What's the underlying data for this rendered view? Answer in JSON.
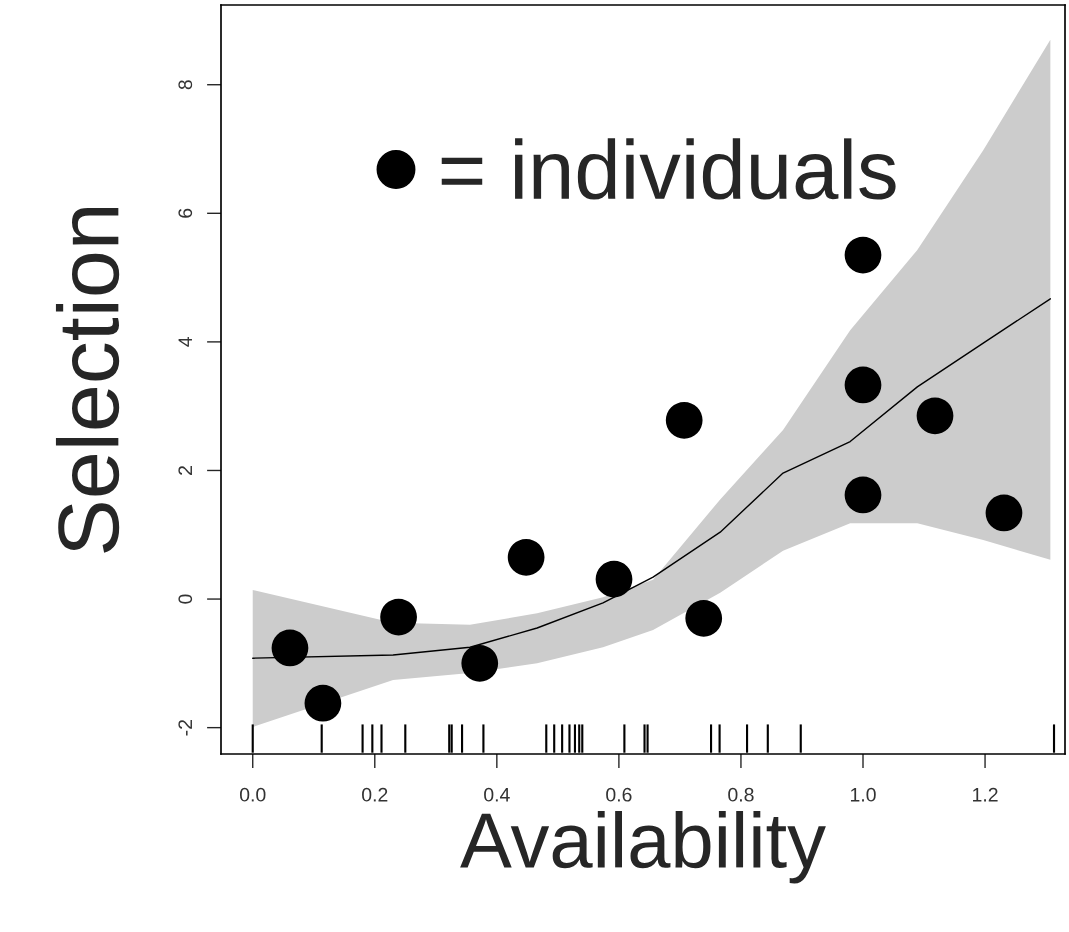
{
  "chart_data": {
    "type": "scatter",
    "xlabel": "Availability",
    "ylabel": "Selection",
    "xlim": [
      -0.052,
      1.331
    ],
    "ylim": [
      -2.41,
      9.24
    ],
    "xticks": [
      {
        "value": 0,
        "label": "0.0"
      },
      0.2,
      0.4,
      0.6,
      0.8,
      {
        "value": 1,
        "label": "1.0"
      },
      1.2
    ],
    "yticks": [
      -2,
      0,
      2,
      4,
      6,
      8
    ],
    "grid": false,
    "legend": "top left",
    "marker": "circle",
    "series": [
      {
        "name": "= individuals",
        "color": "#000000",
        "x": [
          0.061,
          0.115,
          0.239,
          0.372,
          0.448,
          0.592,
          0.707,
          0.739,
          1.0,
          1.0,
          1.0,
          1.118,
          1.231
        ],
        "values": [
          -0.76,
          -1.62,
          -0.28,
          -1.0,
          0.65,
          0.31,
          2.78,
          -0.3,
          5.35,
          3.33,
          1.62,
          2.85,
          1.34
        ]
      },
      {
        "type": "line",
        "color": "#000000",
        "marker": "none",
        "line_style": "solid",
        "x": [
          0.0,
          0.23,
          0.356,
          0.466,
          0.574,
          0.656,
          0.766,
          0.869,
          0.979,
          1.089,
          1.197,
          1.307
        ],
        "values": [
          -0.92,
          -0.87,
          -0.75,
          -0.45,
          -0.06,
          0.34,
          1.04,
          1.96,
          2.45,
          3.3,
          3.98,
          4.67
        ],
        "lower": [
          -1.99,
          -1.26,
          -1.15,
          -1.0,
          -0.75,
          -0.48,
          0.1,
          0.75,
          1.18,
          1.18,
          0.92,
          0.61
        ],
        "upper": [
          0.14,
          -0.37,
          -0.4,
          -0.22,
          0.03,
          0.3,
          1.55,
          2.63,
          4.18,
          5.43,
          6.98,
          8.7
        ]
      },
      {
        "type": "bar",
        "color": "#000000",
        "x": [
          0.0,
          0.113,
          0.18,
          0.196,
          0.211,
          0.25,
          0.322,
          0.326,
          0.343,
          0.378,
          0.481,
          0.494,
          0.507,
          0.519,
          0.528,
          0.535,
          0.54,
          0.609,
          0.642,
          0.647,
          0.751,
          0.765,
          0.81,
          0.844,
          0.898,
          1.313
        ],
        "base": [
          -2.39,
          -2.39,
          -2.39,
          -2.39,
          -2.39,
          -2.39,
          -2.39,
          -2.39,
          -2.39,
          -2.39,
          -2.39,
          -2.39,
          -2.39,
          -2.39,
          -2.39,
          -2.39,
          -2.39,
          -2.39,
          -2.39,
          -2.39,
          -2.39,
          -2.39,
          -2.39,
          -2.39,
          -2.39,
          -2.39
        ],
        "values": [
          0.44,
          0.44,
          0.44,
          0.44,
          0.44,
          0.44,
          0.44,
          0.44,
          0.44,
          0.44,
          0.44,
          0.44,
          0.44,
          0.44,
          0.44,
          0.44,
          0.44,
          0.44,
          0.44,
          0.44,
          0.44,
          0.44,
          0.44,
          0.44,
          0.44,
          0.44
        ]
      }
    ]
  }
}
